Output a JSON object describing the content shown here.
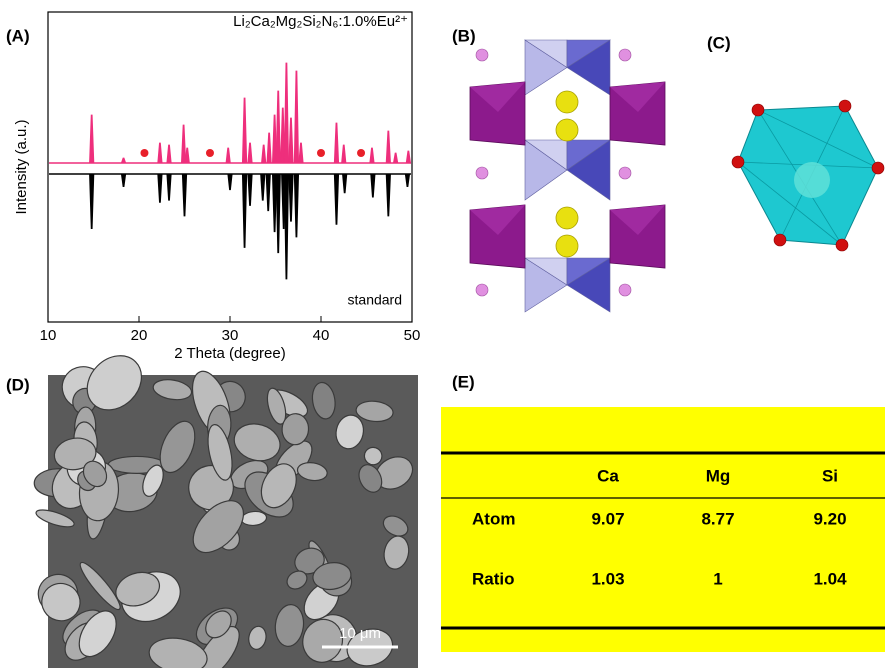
{
  "panel_labels": [
    "(A)",
    "(B)",
    "(C)",
    "(D)",
    "(E)"
  ],
  "chart_data": {
    "type": "xrd",
    "x_label": "2 Theta (degree)",
    "y_label": "Intensity (a.u.)",
    "xlim": [
      10,
      50
    ],
    "xticks": [
      10,
      20,
      30,
      40,
      50
    ],
    "series": [
      {
        "name": "Li₂Ca₂Mg₂Si₂N₆:1.0%Eu²⁺",
        "color": "#ee2f7c",
        "direction": "up",
        "x": [
          14.8,
          18.3,
          22.3,
          23.3,
          24.9,
          25.3,
          29.8,
          31.6,
          32.2,
          33.7,
          34.3,
          34.9,
          35.3,
          35.8,
          36.2,
          36.7,
          37.3,
          37.8,
          41.7,
          42.5,
          45.6,
          47.4,
          48.2,
          49.6
        ],
        "values": [
          48,
          5,
          20,
          18,
          38,
          15,
          15,
          65,
          20,
          18,
          30,
          48,
          72,
          55,
          100,
          45,
          92,
          20,
          40,
          18,
          15,
          32,
          10,
          12
        ]
      },
      {
        "name": "standard",
        "color": "#000000",
        "direction": "down",
        "x": [
          14.8,
          18.3,
          22.3,
          23.3,
          25.0,
          30.0,
          31.6,
          32.2,
          33.6,
          34.2,
          34.9,
          35.3,
          35.9,
          36.2,
          36.7,
          37.3,
          41.7,
          42.6,
          45.7,
          47.4,
          49.5
        ],
        "values": [
          52,
          12,
          27,
          25,
          40,
          15,
          70,
          30,
          25,
          35,
          55,
          75,
          52,
          100,
          45,
          60,
          48,
          18,
          22,
          40,
          12
        ]
      }
    ],
    "markers": {
      "color": "#e8202a",
      "x": [
        20.6,
        27.8,
        40.0,
        44.4
      ]
    }
  },
  "sem": {
    "scale_bar": "10 μm"
  },
  "table": {
    "header": [
      "Ca",
      "Mg",
      "Si"
    ],
    "rows": [
      {
        "label": "Atom",
        "cells": [
          "9.07",
          "8.77",
          "9.20"
        ]
      },
      {
        "label": "Ratio",
        "cells": [
          "1.03",
          "1",
          "1.04"
        ]
      }
    ]
  }
}
